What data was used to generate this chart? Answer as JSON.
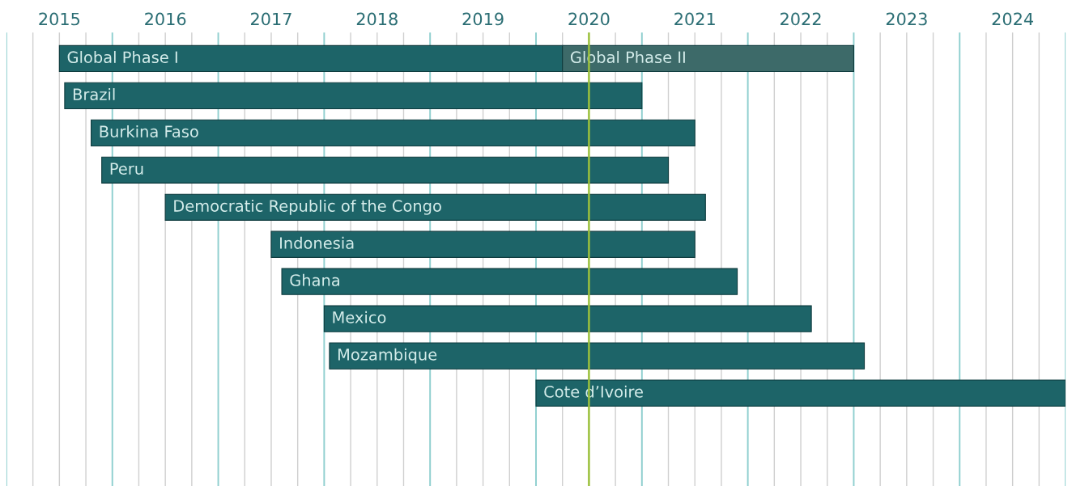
{
  "chart_data": {
    "type": "bar",
    "orientation": "horizontal",
    "categories": [
      "Global Phase I",
      "Brazil",
      "Burkina Faso",
      "Peru",
      "Democratic Republic of the Congo",
      "Indonesia",
      "Ghana",
      "Mexico",
      "Mozambique",
      "Cote d’Ivoire"
    ],
    "series": [
      {
        "color": "#1d6468",
        "base": [
          2015.5,
          2015.55,
          2015.8,
          2015.9,
          2016.5,
          2017.5,
          2017.6,
          2018.0,
          2018.05,
          2020.0
        ],
        "values": [
          4.75,
          5.45,
          5.7,
          5.35,
          5.1,
          4.0,
          4.3,
          4.6,
          5.05,
          5.0
        ]
      },
      {
        "name": "Global Phase II",
        "color": "#3d6a69",
        "base": [
          2020.25,
          null,
          null,
          null,
          null,
          null,
          null,
          null,
          null,
          null
        ],
        "values": [
          2.75,
          null,
          null,
          null,
          null,
          null,
          null,
          null,
          null,
          null
        ]
      }
    ],
    "xlim": [
      2015,
      2025
    ],
    "xticks": [
      {
        "value": 2015,
        "label": null
      },
      {
        "value": 2015.25,
        "label": null
      },
      {
        "value": 2015.5,
        "label": "2015"
      },
      {
        "value": 2015.75,
        "label": null
      },
      {
        "value": 2016,
        "label": null
      },
      {
        "value": 2016.25,
        "label": null
      },
      {
        "value": 2016.5,
        "label": "2016"
      },
      {
        "value": 2016.75,
        "label": null
      },
      {
        "value": 2017,
        "label": null
      },
      {
        "value": 2017.25,
        "label": null
      },
      {
        "value": 2017.5,
        "label": "2017"
      },
      {
        "value": 2017.75,
        "label": null
      },
      {
        "value": 2018,
        "label": null
      },
      {
        "value": 2018.25,
        "label": null
      },
      {
        "value": 2018.5,
        "label": "2018"
      },
      {
        "value": 2018.75,
        "label": null
      },
      {
        "value": 2019,
        "label": null
      },
      {
        "value": 2019.25,
        "label": null
      },
      {
        "value": 2019.5,
        "label": "2019"
      },
      {
        "value": 2019.75,
        "label": null
      },
      {
        "value": 2020,
        "label": null
      },
      {
        "value": 2020.25,
        "label": null
      },
      {
        "value": 2020.5,
        "label": "2020"
      },
      {
        "value": 2020.75,
        "label": null
      },
      {
        "value": 2021,
        "label": null
      },
      {
        "value": 2021.25,
        "label": null
      },
      {
        "value": 2021.5,
        "label": "2021"
      },
      {
        "value": 2021.75,
        "label": null
      },
      {
        "value": 2022,
        "label": null
      },
      {
        "value": 2022.25,
        "label": null
      },
      {
        "value": 2022.5,
        "label": "2022"
      },
      {
        "value": 2022.75,
        "label": null
      },
      {
        "value": 2023,
        "label": null
      },
      {
        "value": 2023.25,
        "label": null
      },
      {
        "value": 2023.5,
        "label": "2023"
      },
      {
        "value": 2023.75,
        "label": null
      },
      {
        "value": 2024,
        "label": null
      },
      {
        "value": 2024.25,
        "label": null
      },
      {
        "value": 2024.5,
        "label": "2024"
      },
      {
        "value": 2024.75,
        "label": null
      },
      {
        "value": 2025,
        "label": null
      }
    ],
    "grid": "x",
    "tick_labels": "x",
    "ref_lines": [
      {
        "axis": "x",
        "value": 2020.5,
        "color": "#9bc13c"
      }
    ]
  }
}
